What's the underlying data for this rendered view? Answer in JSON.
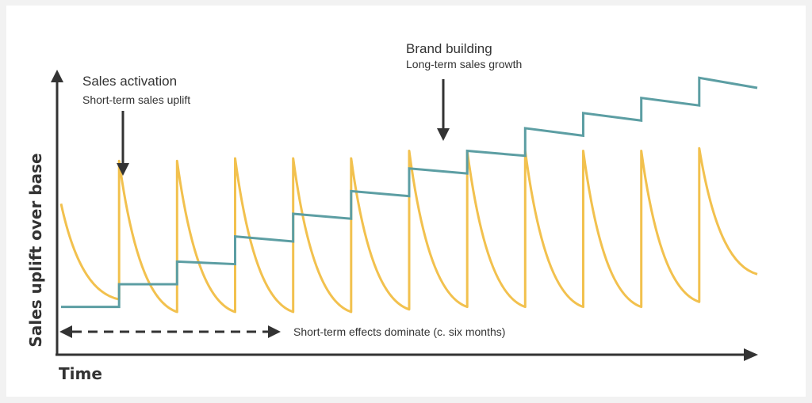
{
  "chart_data": {
    "type": "line",
    "title": "",
    "xlabel": "Time",
    "ylabel": "Sales uplift over base",
    "grid": false,
    "legend": "none",
    "xlim": [
      0,
      12
    ],
    "ylim": [
      0,
      100
    ],
    "series": [
      {
        "color": "#f2c14e",
        "points": [
          [
            0,
            43
          ],
          [
            1,
            5
          ],
          [
            1,
            60
          ],
          [
            2,
            0
          ],
          [
            2,
            60
          ],
          [
            3,
            0
          ],
          [
            3,
            61
          ],
          [
            4,
            0
          ],
          [
            4,
            61
          ],
          [
            5,
            0
          ],
          [
            5,
            61
          ],
          [
            6,
            1
          ],
          [
            6,
            64
          ],
          [
            7,
            2
          ],
          [
            7,
            64
          ],
          [
            8,
            2
          ],
          [
            8,
            64
          ],
          [
            9,
            2
          ],
          [
            9,
            64
          ],
          [
            10,
            2
          ],
          [
            10,
            64
          ],
          [
            11,
            4
          ],
          [
            11,
            65
          ],
          [
            12,
            15
          ]
        ]
      },
      {
        "color": "#5c9ea3",
        "points": [
          [
            0,
            2
          ],
          [
            1,
            2
          ],
          [
            1,
            11
          ],
          [
            2,
            11
          ],
          [
            2,
            20
          ],
          [
            3,
            19
          ],
          [
            3,
            30
          ],
          [
            4,
            28
          ],
          [
            4,
            39
          ],
          [
            5,
            37
          ],
          [
            5,
            48
          ],
          [
            6,
            46
          ],
          [
            6,
            57
          ],
          [
            7,
            55
          ],
          [
            7,
            64
          ],
          [
            8,
            62
          ],
          [
            8,
            73
          ],
          [
            9,
            70
          ],
          [
            9,
            79
          ],
          [
            10,
            76
          ],
          [
            10,
            85
          ],
          [
            11,
            82
          ],
          [
            11,
            93
          ],
          [
            12,
            89
          ]
        ]
      }
    ],
    "annotations": [
      {
        "title": "Sales activation",
        "subtitle": "Short-term sales uplift"
      },
      {
        "title": "Brand building",
        "subtitle": "Long-term sales growth"
      },
      {
        "text": "Short-term effects dominate (c. six months)"
      }
    ]
  },
  "colors": {
    "sales_activation": "#f2c14e",
    "brand_building": "#5c9ea3",
    "axis": "#333333"
  }
}
